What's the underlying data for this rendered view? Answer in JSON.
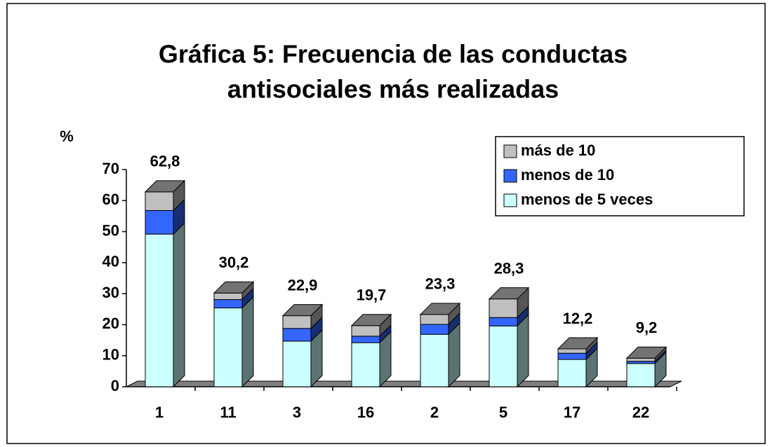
{
  "chart_data": {
    "type": "bar3d_stacked",
    "title": [
      "Gráfica 5: Frecuencia de las conductas",
      "antisociales más realizadas"
    ],
    "y_label": "%",
    "categories": [
      "1",
      "11",
      "3",
      "16",
      "2",
      "5",
      "17",
      "22"
    ],
    "series": [
      {
        "name": "menos de 5 veces",
        "color": "#ccffff",
        "values": [
          49.2,
          25.4,
          14.7,
          14.2,
          16.9,
          19.6,
          8.8,
          7.5
        ]
      },
      {
        "name": "menos de 10",
        "color": "#3366ff",
        "values": [
          7.6,
          2.7,
          4.1,
          2.1,
          3.2,
          2.7,
          2.0,
          0.7
        ]
      },
      {
        "name": "más de 10",
        "color": "#c0c0c0",
        "values": [
          6.0,
          2.1,
          4.1,
          3.4,
          3.2,
          6.0,
          1.4,
          1.0
        ]
      }
    ],
    "totals": [
      62.8,
      30.2,
      22.9,
      19.7,
      23.3,
      28.3,
      12.2,
      9.2
    ],
    "total_labels": [
      "62,8",
      "30,2",
      "22,9",
      "19,7",
      "23,3",
      "28,3",
      "12,2",
      "9,2"
    ],
    "ylim": [
      0,
      70
    ],
    "yticks": [
      0,
      10,
      20,
      30,
      40,
      50,
      60,
      70
    ],
    "legend": "top-right",
    "stacked": true
  }
}
